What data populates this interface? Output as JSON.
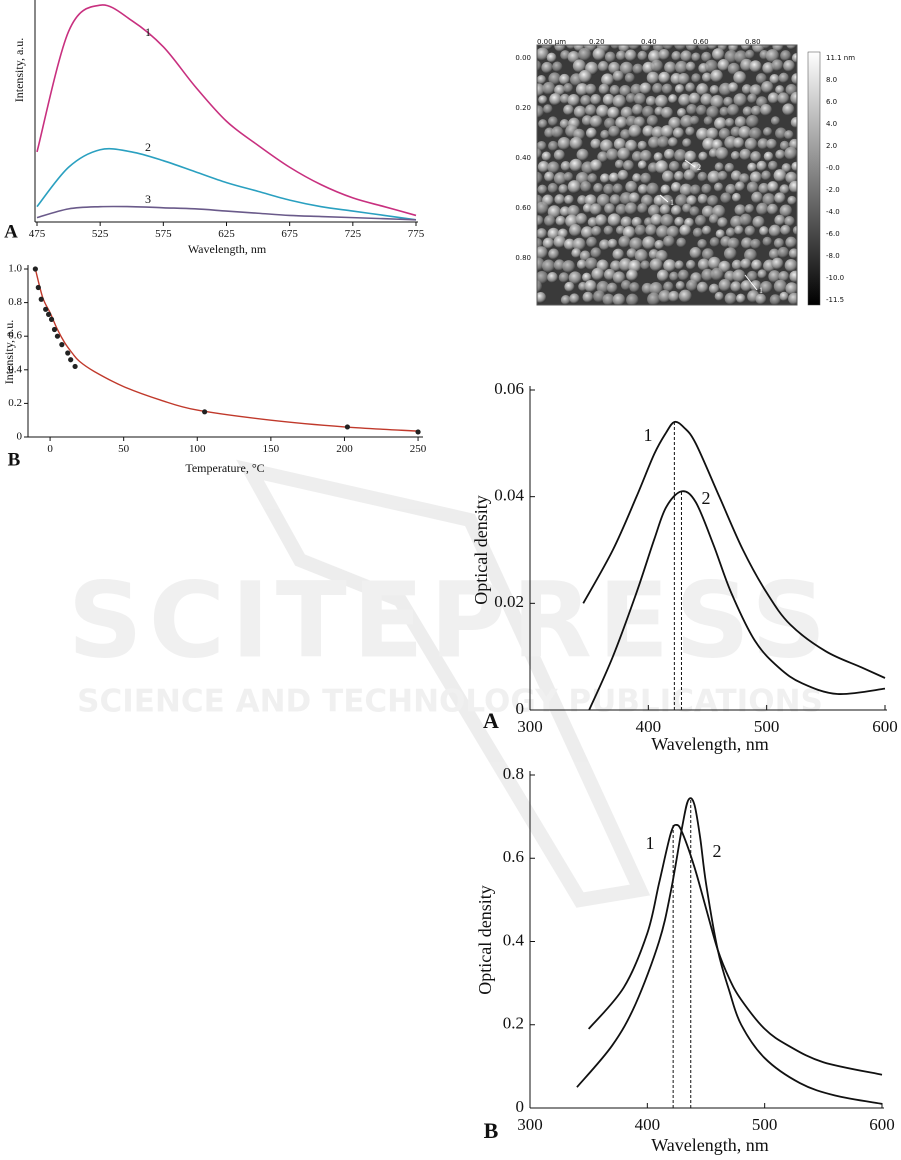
{
  "watermark": {
    "brand": "SCITEPRESS",
    "tagline": "SCIENCE AND TECHNOLOGY PUBLICATIONS"
  },
  "afm_image": {
    "x_labels": [
      "0.00 µm",
      "0.20",
      "0.40",
      "0.60",
      "0.80"
    ],
    "y_labels": [
      "0.00",
      "0.20",
      "0.40",
      "0.60",
      "0.80"
    ],
    "colorbar_labels": [
      "11.1 nm",
      "8.0",
      "6.0",
      "4.0",
      "2.0",
      "-0.0",
      "-2.0",
      "-4.0",
      "-6.0",
      "-8.0",
      "-10.0",
      "-11.5"
    ],
    "markers": [
      "2",
      "1",
      "1"
    ]
  },
  "chart_data": [
    {
      "type": "line",
      "panel_label": "A",
      "x_label": "Wavelength, nm",
      "y_label": "Intensity, a.u.",
      "xlim": [
        475,
        775
      ],
      "ylim": [
        0,
        1
      ],
      "xticks": [
        475,
        525,
        575,
        625,
        675,
        725,
        775
      ],
      "x": [
        475,
        500,
        525,
        550,
        575,
        600,
        625,
        650,
        675,
        700,
        725,
        750,
        775
      ],
      "series": [
        {
          "name": "1",
          "color": "#c8307f",
          "values": [
            0.32,
            0.87,
            0.99,
            0.92,
            0.8,
            0.62,
            0.46,
            0.35,
            0.25,
            0.17,
            0.11,
            0.07,
            0.03
          ]
        },
        {
          "name": "2",
          "color": "#2aa0c0",
          "values": [
            0.07,
            0.25,
            0.33,
            0.32,
            0.28,
            0.23,
            0.18,
            0.14,
            0.1,
            0.07,
            0.05,
            0.03,
            0.01
          ]
        },
        {
          "name": "3",
          "color": "#6a5a8a",
          "values": [
            0.02,
            0.06,
            0.07,
            0.07,
            0.065,
            0.06,
            0.05,
            0.04,
            0.03,
            0.025,
            0.02,
            0.015,
            0.01
          ]
        }
      ]
    },
    {
      "type": "scatter",
      "panel_label": "B",
      "x_label": "Temperature, °C",
      "y_label": "Intensity, a.u.",
      "xlim": [
        -15,
        252
      ],
      "ylim": [
        0,
        1
      ],
      "xticks": [
        0,
        50,
        100,
        150,
        200,
        250
      ],
      "yticks": [
        0,
        0.2,
        0.4,
        0.6,
        0.8,
        {
          "value": 1,
          "label": "1.0"
        }
      ],
      "color": "#222222",
      "x": [
        -10,
        -8,
        -6,
        -3,
        -1,
        1,
        3,
        5,
        8,
        12,
        14,
        17,
        105,
        202,
        250
      ],
      "values": [
        1,
        0.89,
        0.82,
        0.76,
        0.73,
        0.7,
        0.64,
        0.6,
        0.55,
        0.5,
        0.46,
        0.42,
        0.15,
        0.06,
        0.03
      ],
      "fit": {
        "color": "#c0392b",
        "x": [
          -10,
          -5,
          0,
          5,
          10,
          15,
          20,
          30,
          50,
          75,
          100,
          150,
          200,
          250
        ],
        "values": [
          1,
          0.83,
          0.74,
          0.64,
          0.56,
          0.5,
          0.45,
          0.39,
          0.3,
          0.22,
          0.16,
          0.1,
          0.06,
          0.035
        ]
      }
    },
    {
      "type": "line",
      "panel_label": "A",
      "x_label": "Wavelength, nm",
      "y_label": "Optical density",
      "xlim": [
        300,
        600
      ],
      "ylim": [
        0,
        0.06
      ],
      "xticks": [
        300,
        400,
        500,
        600
      ],
      "yticks": [
        0,
        0.02,
        0.04,
        0.06
      ],
      "peaks": [
        422,
        428
      ],
      "series": [
        {
          "name": "1",
          "color": "#111111",
          "x": [
            345,
            370,
            390,
            405,
            415,
            422,
            430,
            440,
            460,
            480,
            500,
            520,
            550,
            580,
            600
          ],
          "values": [
            0.02,
            0.03,
            0.04,
            0.048,
            0.052,
            0.054,
            0.053,
            0.05,
            0.04,
            0.03,
            0.022,
            0.016,
            0.011,
            0.008,
            0.006
          ]
        },
        {
          "name": "2",
          "color": "#111111",
          "x": [
            350,
            370,
            390,
            405,
            415,
            428,
            440,
            455,
            470,
            490,
            510,
            530,
            560,
            600
          ],
          "values": [
            0,
            0.01,
            0.022,
            0.032,
            0.038,
            0.041,
            0.039,
            0.031,
            0.022,
            0.013,
            0.008,
            0.005,
            0.003,
            0.004
          ]
        }
      ]
    },
    {
      "type": "line",
      "panel_label": "B",
      "x_label": "Wavelength, nm",
      "y_label": "Optical density",
      "xlim": [
        300,
        600
      ],
      "ylim": [
        0,
        0.8
      ],
      "xticks": [
        300,
        400,
        500,
        600
      ],
      "yticks": [
        0,
        0.2,
        0.4,
        0.6,
        0.8
      ],
      "peaks": [
        422,
        437
      ],
      "series": [
        {
          "name": "1",
          "color": "#111111",
          "x": [
            350,
            380,
            400,
            410,
            420,
            425,
            430,
            440,
            450,
            460,
            470,
            480,
            500,
            520,
            550,
            600
          ],
          "values": [
            0.19,
            0.29,
            0.42,
            0.54,
            0.66,
            0.68,
            0.66,
            0.58,
            0.48,
            0.38,
            0.31,
            0.26,
            0.19,
            0.15,
            0.11,
            0.08
          ]
        },
        {
          "name": "2",
          "color": "#111111",
          "x": [
            340,
            370,
            390,
            410,
            420,
            430,
            435,
            440,
            445,
            450,
            460,
            470,
            480,
            500,
            530,
            560,
            600
          ],
          "values": [
            0.05,
            0.15,
            0.25,
            0.4,
            0.52,
            0.68,
            0.74,
            0.73,
            0.65,
            0.54,
            0.38,
            0.28,
            0.2,
            0.12,
            0.06,
            0.03,
            0.01
          ]
        }
      ]
    }
  ]
}
